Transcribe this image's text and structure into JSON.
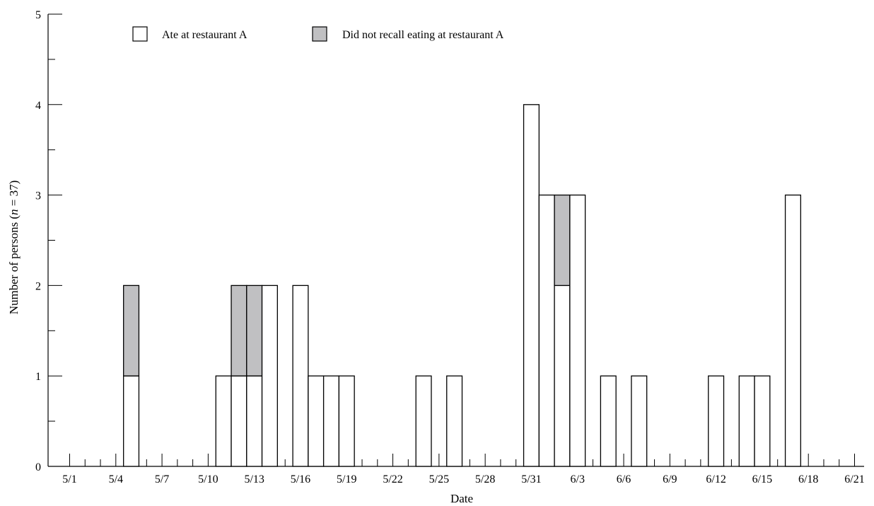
{
  "chart_data": {
    "type": "bar",
    "stacked": true,
    "xlabel": "Date",
    "ylabel_parts": [
      "Number of persons (",
      "n",
      " = 37)"
    ],
    "ylim": [
      0,
      5
    ],
    "yticks": [
      0,
      1,
      2,
      3,
      4,
      5
    ],
    "legend_position": "top-left",
    "grid": false,
    "x_start_date": "5/1",
    "x_end_date": "6/21",
    "x_ticklabels": [
      "5/1",
      "5/4",
      "5/7",
      "5/10",
      "5/13",
      "5/16",
      "5/19",
      "5/22",
      "5/25",
      "5/28",
      "5/31",
      "6/3",
      "6/6",
      "6/9",
      "6/12",
      "6/15",
      "6/18",
      "6/21"
    ],
    "series": [
      {
        "name": "Ate at restaurant A",
        "color": "#ffffff"
      },
      {
        "name": "Did not recall eating at restaurant A",
        "color": "#c0c0c2"
      }
    ],
    "bars": [
      {
        "date": "5/5",
        "values": [
          1,
          1
        ]
      },
      {
        "date": "5/11",
        "values": [
          1,
          0
        ]
      },
      {
        "date": "5/12",
        "values": [
          1,
          1
        ]
      },
      {
        "date": "5/13",
        "values": [
          1,
          1
        ]
      },
      {
        "date": "5/14",
        "values": [
          2,
          0
        ]
      },
      {
        "date": "5/16",
        "values": [
          2,
          0
        ]
      },
      {
        "date": "5/17",
        "values": [
          1,
          0
        ]
      },
      {
        "date": "5/18",
        "values": [
          1,
          0
        ]
      },
      {
        "date": "5/19",
        "values": [
          1,
          0
        ]
      },
      {
        "date": "5/24",
        "values": [
          1,
          0
        ]
      },
      {
        "date": "5/26",
        "values": [
          1,
          0
        ]
      },
      {
        "date": "5/31",
        "values": [
          4,
          0
        ]
      },
      {
        "date": "6/1",
        "values": [
          3,
          0
        ]
      },
      {
        "date": "6/2",
        "values": [
          2,
          1
        ]
      },
      {
        "date": "6/3",
        "values": [
          3,
          0
        ]
      },
      {
        "date": "6/5",
        "values": [
          1,
          0
        ]
      },
      {
        "date": "6/7",
        "values": [
          1,
          0
        ]
      },
      {
        "date": "6/12",
        "values": [
          1,
          0
        ]
      },
      {
        "date": "6/14",
        "values": [
          1,
          0
        ]
      },
      {
        "date": "6/15",
        "values": [
          1,
          0
        ]
      },
      {
        "date": "6/17",
        "values": [
          3,
          0
        ]
      }
    ]
  }
}
